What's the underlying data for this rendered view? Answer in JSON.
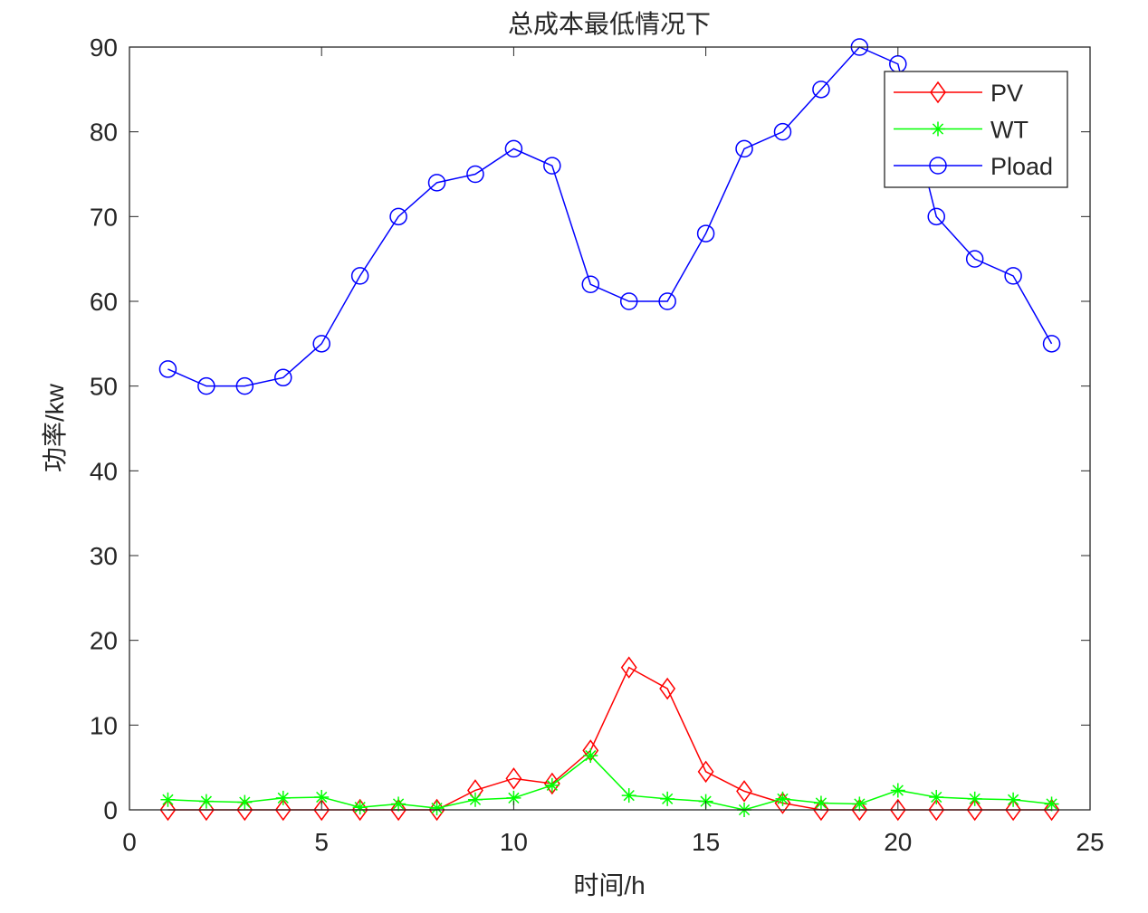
{
  "chart_data": {
    "type": "line",
    "title": "总成本最低情况下",
    "xlabel": "时间/h",
    "ylabel": "功率/kw",
    "xlim": [
      0,
      25
    ],
    "ylim": [
      0,
      90
    ],
    "xticks": [
      0,
      5,
      10,
      15,
      20,
      25
    ],
    "yticks": [
      0,
      10,
      20,
      30,
      40,
      50,
      60,
      70,
      80,
      90
    ],
    "grid": false,
    "legend_position": "top-right",
    "x": [
      1,
      2,
      3,
      4,
      5,
      6,
      7,
      8,
      9,
      10,
      11,
      12,
      13,
      14,
      15,
      16,
      17,
      18,
      19,
      20,
      21,
      22,
      23,
      24
    ],
    "series": [
      {
        "name": "PV",
        "color": "#ff0000",
        "marker": "diamond",
        "values": [
          0,
          0,
          0,
          0,
          0,
          0,
          0,
          0,
          2.3,
          3.7,
          3.1,
          7.0,
          16.8,
          14.3,
          4.5,
          2.2,
          0.8,
          0,
          0,
          0,
          0,
          0,
          0,
          0
        ]
      },
      {
        "name": "WT",
        "color": "#00ff00",
        "marker": "asterisk",
        "values": [
          1.2,
          1.0,
          0.9,
          1.4,
          1.5,
          0.3,
          0.7,
          0.2,
          1.2,
          1.4,
          2.9,
          6.4,
          1.7,
          1.3,
          1.0,
          0,
          1.3,
          0.8,
          0.7,
          2.3,
          1.5,
          1.3,
          1.2,
          0.7
        ]
      },
      {
        "name": "Pload",
        "color": "#0000ff",
        "marker": "circle",
        "values": [
          52,
          50,
          50,
          51,
          55,
          63,
          70,
          74,
          75,
          78,
          76,
          62,
          60,
          60,
          68,
          78,
          80,
          85,
          90,
          88,
          70,
          65,
          63,
          55
        ]
      }
    ]
  }
}
